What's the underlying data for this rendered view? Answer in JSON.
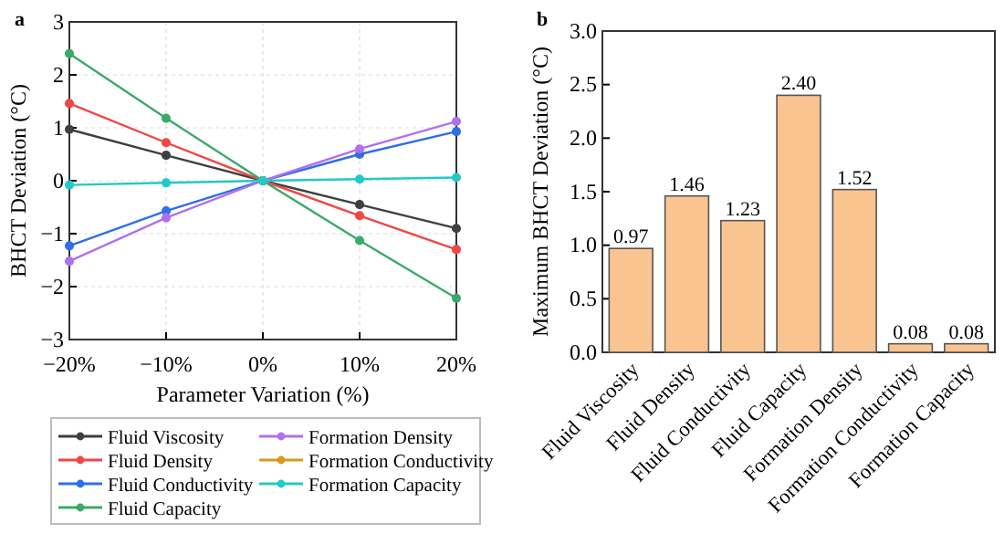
{
  "chart_data": [
    {
      "type": "line",
      "title": "a",
      "xlabel": "Parameter Variation (%)",
      "ylabel": "BHCT Deviation (°C)",
      "x": [
        -20,
        -10,
        0,
        10,
        20
      ],
      "xlim": [
        -20,
        20
      ],
      "xticks": [
        {
          "value": -20,
          "label": "−20%"
        },
        {
          "value": -10,
          "label": "−10%"
        },
        {
          "value": 0,
          "label": "0%"
        },
        {
          "value": 10,
          "label": "10%"
        },
        {
          "value": 20,
          "label": "20%"
        }
      ],
      "ylim": [
        -3,
        3
      ],
      "yticks": [
        {
          "value": -3,
          "label": "−3"
        },
        {
          "value": -2,
          "label": "−2"
        },
        {
          "value": -1,
          "label": "−1"
        },
        0,
        1,
        2,
        3
      ],
      "grid": true,
      "legend": "bottom",
      "marker": "circle",
      "series": [
        {
          "name": "Fluid Viscosity",
          "color": "#3f3f3f",
          "values": [
            0.97,
            0.48,
            0,
            -0.45,
            -0.9
          ]
        },
        {
          "name": "Fluid Density",
          "color": "#f04646",
          "values": [
            1.46,
            0.72,
            0,
            -0.66,
            -1.3
          ]
        },
        {
          "name": "Fluid Conductivity",
          "color": "#2f6fe8",
          "values": [
            -1.23,
            -0.57,
            0,
            0.5,
            0.93
          ]
        },
        {
          "name": "Fluid Capacity",
          "color": "#3aaa6a",
          "values": [
            2.4,
            1.18,
            0,
            -1.13,
            -2.22
          ]
        },
        {
          "name": "Formation Density",
          "color": "#b070f0",
          "values": [
            -1.52,
            -0.7,
            0,
            0.6,
            1.12
          ]
        },
        {
          "name": "Formation Conductivity",
          "color": "#d99a1a",
          "values": [
            null,
            null,
            null,
            null,
            null
          ]
        },
        {
          "name": "Formation Capacity",
          "color": "#22c9c9",
          "values": [
            -0.08,
            -0.04,
            0,
            0.03,
            0.06
          ]
        }
      ]
    },
    {
      "type": "bar",
      "title": "b",
      "ylabel": "Maximum BHCT Deviation (°C)",
      "categories": [
        "Fluid Viscosity",
        "Fluid Density",
        "Fluid Conductivity",
        "Fluid Capacity",
        "Formation Density",
        "Formation Conductivity",
        "Formation Capacity"
      ],
      "values": [
        0.97,
        1.46,
        1.23,
        2.4,
        1.52,
        0.08,
        0.08
      ],
      "value_labels": [
        "0.97",
        "1.46",
        "1.23",
        "2.40",
        "1.52",
        "0.08",
        "0.08"
      ],
      "color": "#f9c48f",
      "ylim": [
        0,
        3
      ],
      "yticks": [
        {
          "value": 0,
          "label": "0.0"
        },
        {
          "value": 0.5,
          "label": "0.5"
        },
        {
          "value": 1,
          "label": "1.0"
        },
        {
          "value": 1.5,
          "label": "1.5"
        },
        {
          "value": 2,
          "label": "2.0"
        },
        {
          "value": 2.5,
          "label": "2.5"
        },
        {
          "value": 3,
          "label": "3.0"
        }
      ]
    }
  ]
}
